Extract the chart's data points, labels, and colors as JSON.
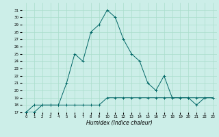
{
  "xlabel": "Humidex (Indice chaleur)",
  "x": [
    0,
    1,
    2,
    3,
    4,
    5,
    6,
    7,
    8,
    9,
    10,
    11,
    12,
    13,
    14,
    15,
    16,
    17,
    18,
    19,
    20,
    21,
    22,
    23
  ],
  "curve1": [
    17,
    18,
    18,
    18,
    18,
    21,
    25,
    24,
    28,
    29,
    31,
    30,
    27,
    25,
    24,
    21,
    20,
    22,
    19,
    19,
    19,
    19,
    19,
    19
  ],
  "curve2": [
    17,
    17,
    18,
    18,
    18,
    18,
    18,
    18,
    18,
    18,
    19,
    19,
    19,
    19,
    19,
    19,
    19,
    19,
    19,
    19,
    19,
    18,
    19,
    19
  ],
  "line_color": "#006666",
  "bg_color": "#cceee8",
  "grid_color": "#aaddcc",
  "ylim": [
    17,
    32
  ],
  "xlim": [
    -0.5,
    23.5
  ],
  "yticks": [
    17,
    18,
    19,
    20,
    21,
    22,
    23,
    24,
    25,
    26,
    27,
    28,
    29,
    30,
    31
  ],
  "xticks": [
    0,
    1,
    2,
    3,
    4,
    5,
    6,
    7,
    8,
    9,
    10,
    11,
    12,
    13,
    14,
    15,
    16,
    17,
    18,
    19,
    20,
    21,
    22,
    23
  ]
}
